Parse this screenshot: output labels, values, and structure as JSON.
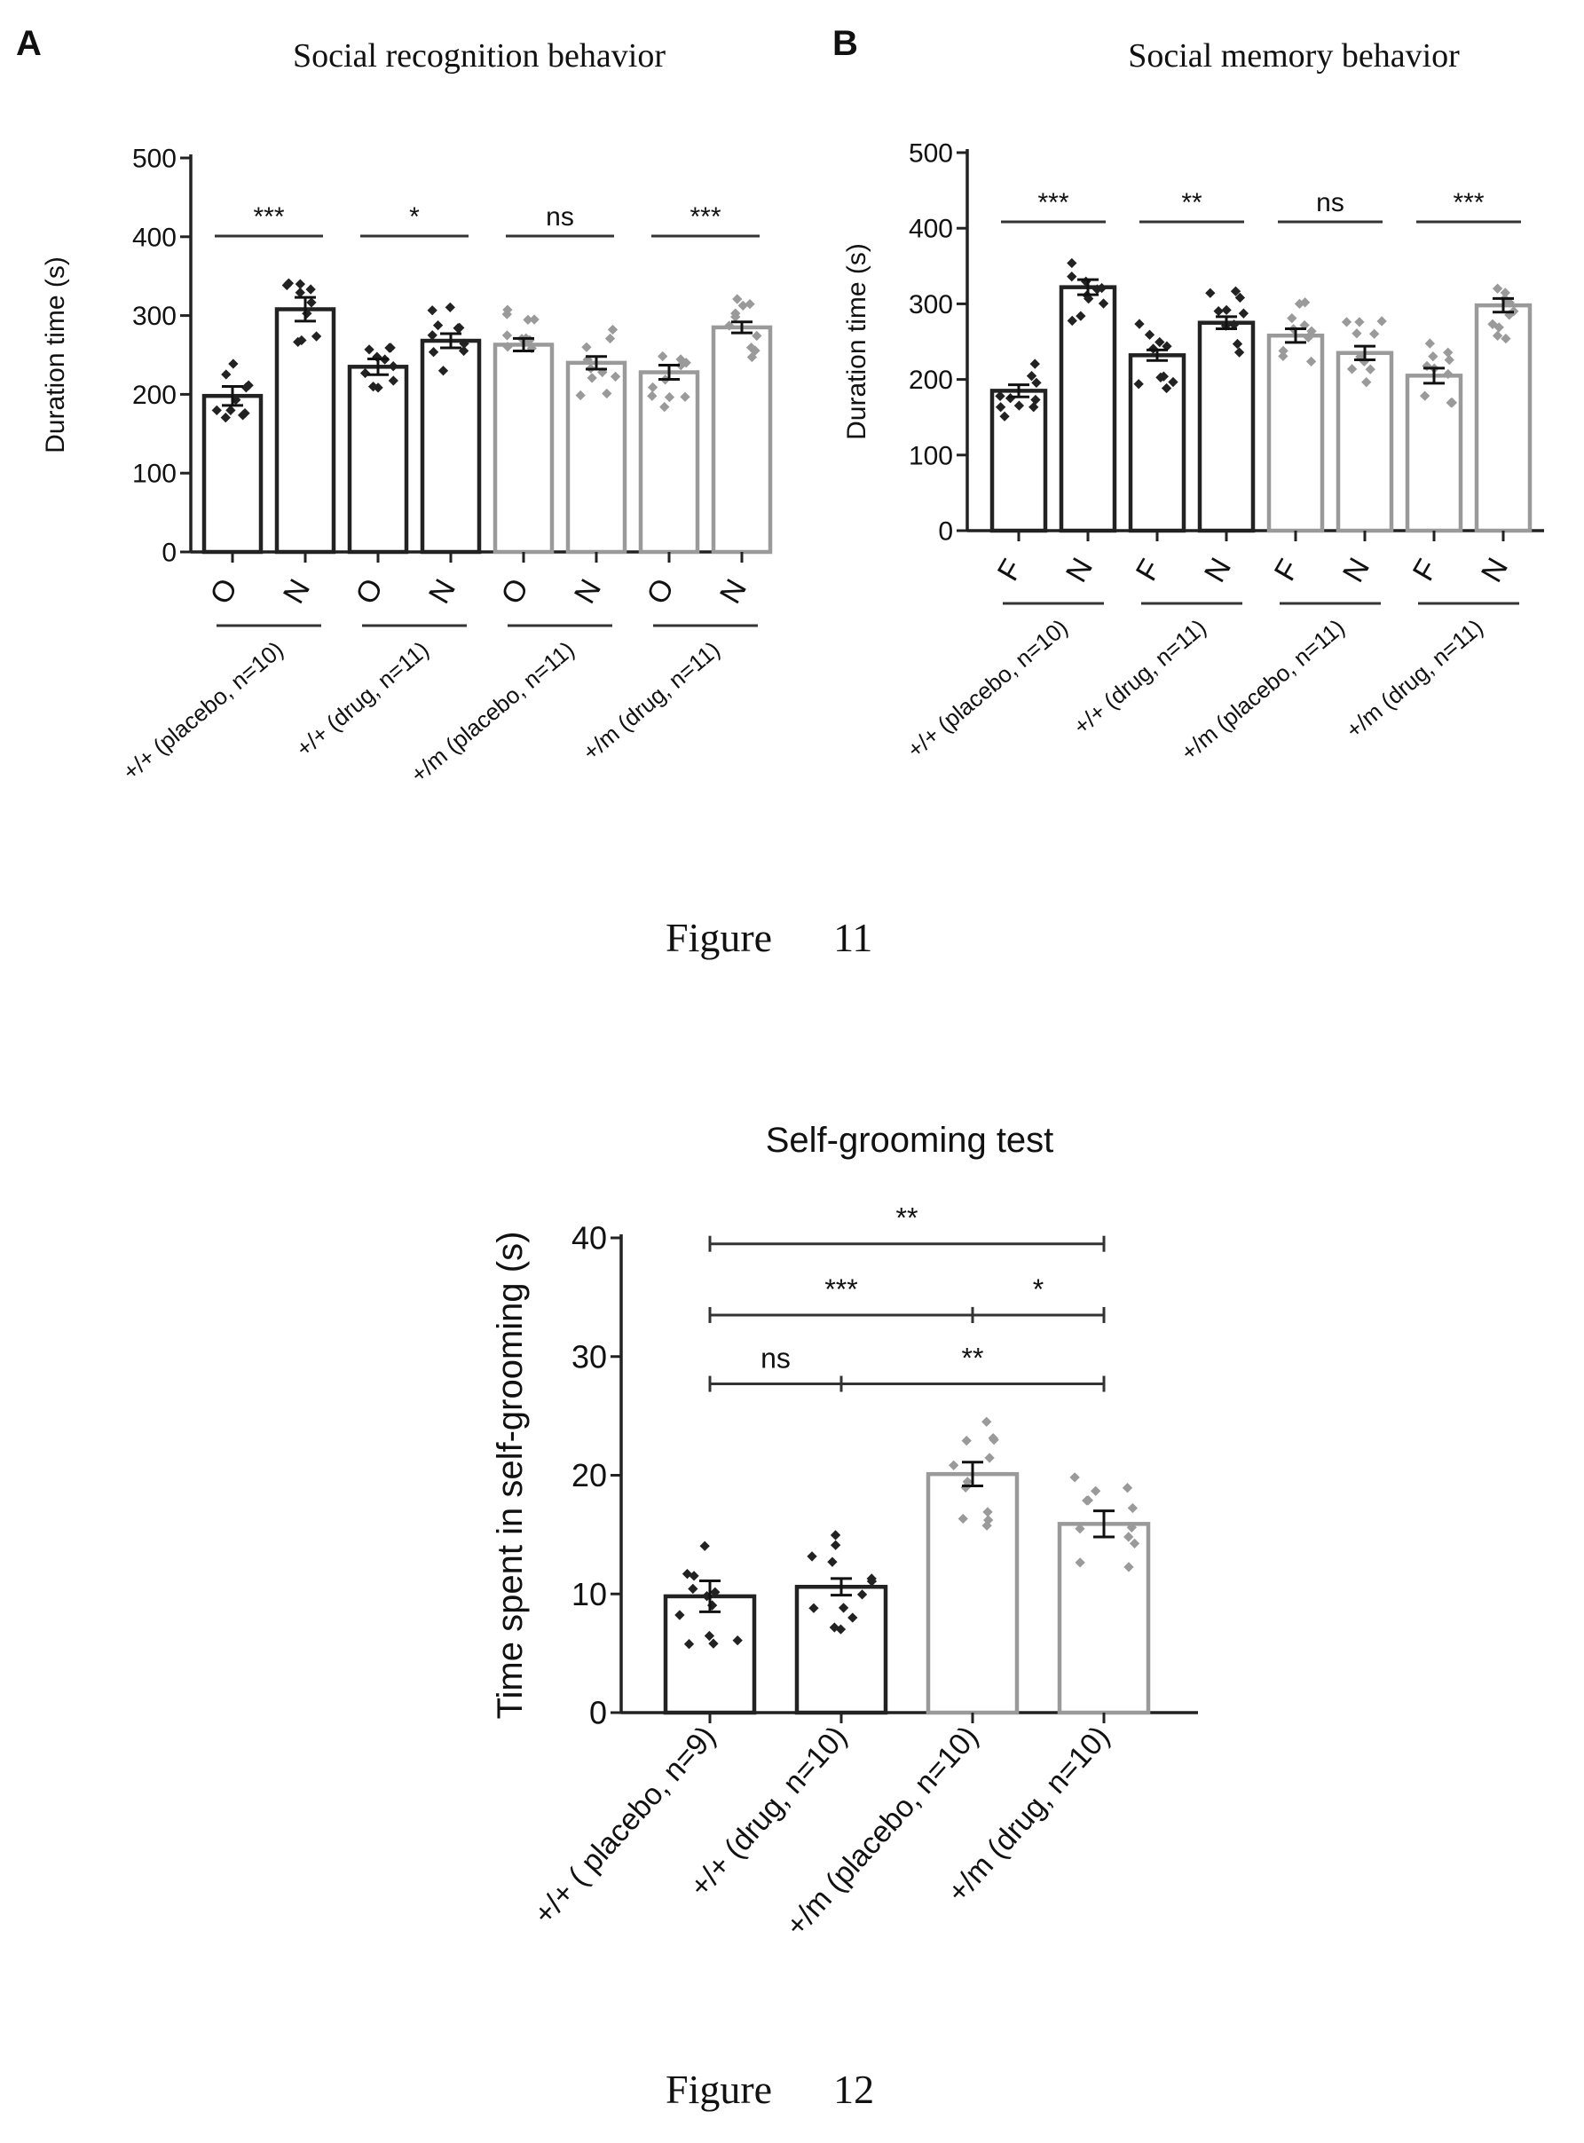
{
  "panel_labels": {
    "a": "A",
    "b": "B"
  },
  "figure_captions": {
    "fig11": "Figure      11",
    "fig12": "Figure      12"
  },
  "chart_data": [
    {
      "id": "A",
      "type": "bar",
      "title": "Social recognition behavior",
      "ylabel": "Duration time (s)",
      "ylim": [
        0,
        500
      ],
      "yticks": [
        0,
        100,
        200,
        300,
        400,
        500
      ],
      "categories": [
        "O",
        "N",
        "O",
        "N",
        "O",
        "N",
        "O",
        "N"
      ],
      "values": [
        198,
        308,
        235,
        268,
        263,
        240,
        228,
        285
      ],
      "errors": [
        12,
        15,
        10,
        9,
        8,
        8,
        9,
        7
      ],
      "bar_colors": [
        "#222222",
        "#222222",
        "#222222",
        "#222222",
        "#9a9a9a",
        "#9a9a9a",
        "#9a9a9a",
        "#9a9a9a"
      ],
      "groups": [
        "+/+ (placebo, n=10)",
        "+/+ (drug, n=11)",
        "+/m (placebo, n=11)",
        "+/m (drug, n=11)"
      ],
      "significance": [
        "***",
        "*",
        "ns",
        "***"
      ]
    },
    {
      "id": "B",
      "type": "bar",
      "title": "Social memory behavior",
      "ylabel": "Duration time (s)",
      "ylim": [
        0,
        500
      ],
      "yticks": [
        0,
        100,
        200,
        300,
        400,
        500
      ],
      "categories": [
        "F",
        "N",
        "F",
        "N",
        "F",
        "N",
        "F",
        "N"
      ],
      "values": [
        185,
        322,
        232,
        275,
        258,
        235,
        205,
        298
      ],
      "errors": [
        8,
        10,
        7,
        8,
        9,
        9,
        10,
        9
      ],
      "bar_colors": [
        "#222222",
        "#222222",
        "#222222",
        "#222222",
        "#9a9a9a",
        "#9a9a9a",
        "#9a9a9a",
        "#9a9a9a"
      ],
      "groups": [
        "+/+ (placebo, n=10)",
        "+/+ (drug, n=11)",
        "+/m (placebo, n=11)",
        "+/m (drug, n=11)"
      ],
      "significance": [
        "***",
        "**",
        "ns",
        "***"
      ]
    },
    {
      "id": "C",
      "type": "bar",
      "title": "Self-grooming test",
      "ylabel": "Time spent in self-grooming (s)",
      "ylim": [
        0,
        40
      ],
      "yticks": [
        0,
        10,
        20,
        30,
        40
      ],
      "categories": [
        "+/+ ( placebo, n=9)",
        "+/+ (drug, n=10)",
        "+/m (placebo, n=10)",
        "+/m (drug, n=10)"
      ],
      "values": [
        9.8,
        10.6,
        20.1,
        15.9
      ],
      "errors": [
        1.3,
        0.7,
        1.0,
        1.1
      ],
      "bar_colors": [
        "#222222",
        "#222222",
        "#9a9a9a",
        "#9a9a9a"
      ],
      "brackets": [
        {
          "from": 0,
          "to": 3,
          "y": 39.5,
          "label": "**"
        },
        {
          "from": 0,
          "to": 2,
          "y": 33.5,
          "label": "***"
        },
        {
          "from": 2,
          "to": 3,
          "y": 33.5,
          "label": "*"
        },
        {
          "from": 0,
          "to": 1,
          "y": 27.7,
          "label": "ns"
        },
        {
          "from": 1,
          "to": 3,
          "y": 27.7,
          "label": "**"
        }
      ]
    }
  ]
}
